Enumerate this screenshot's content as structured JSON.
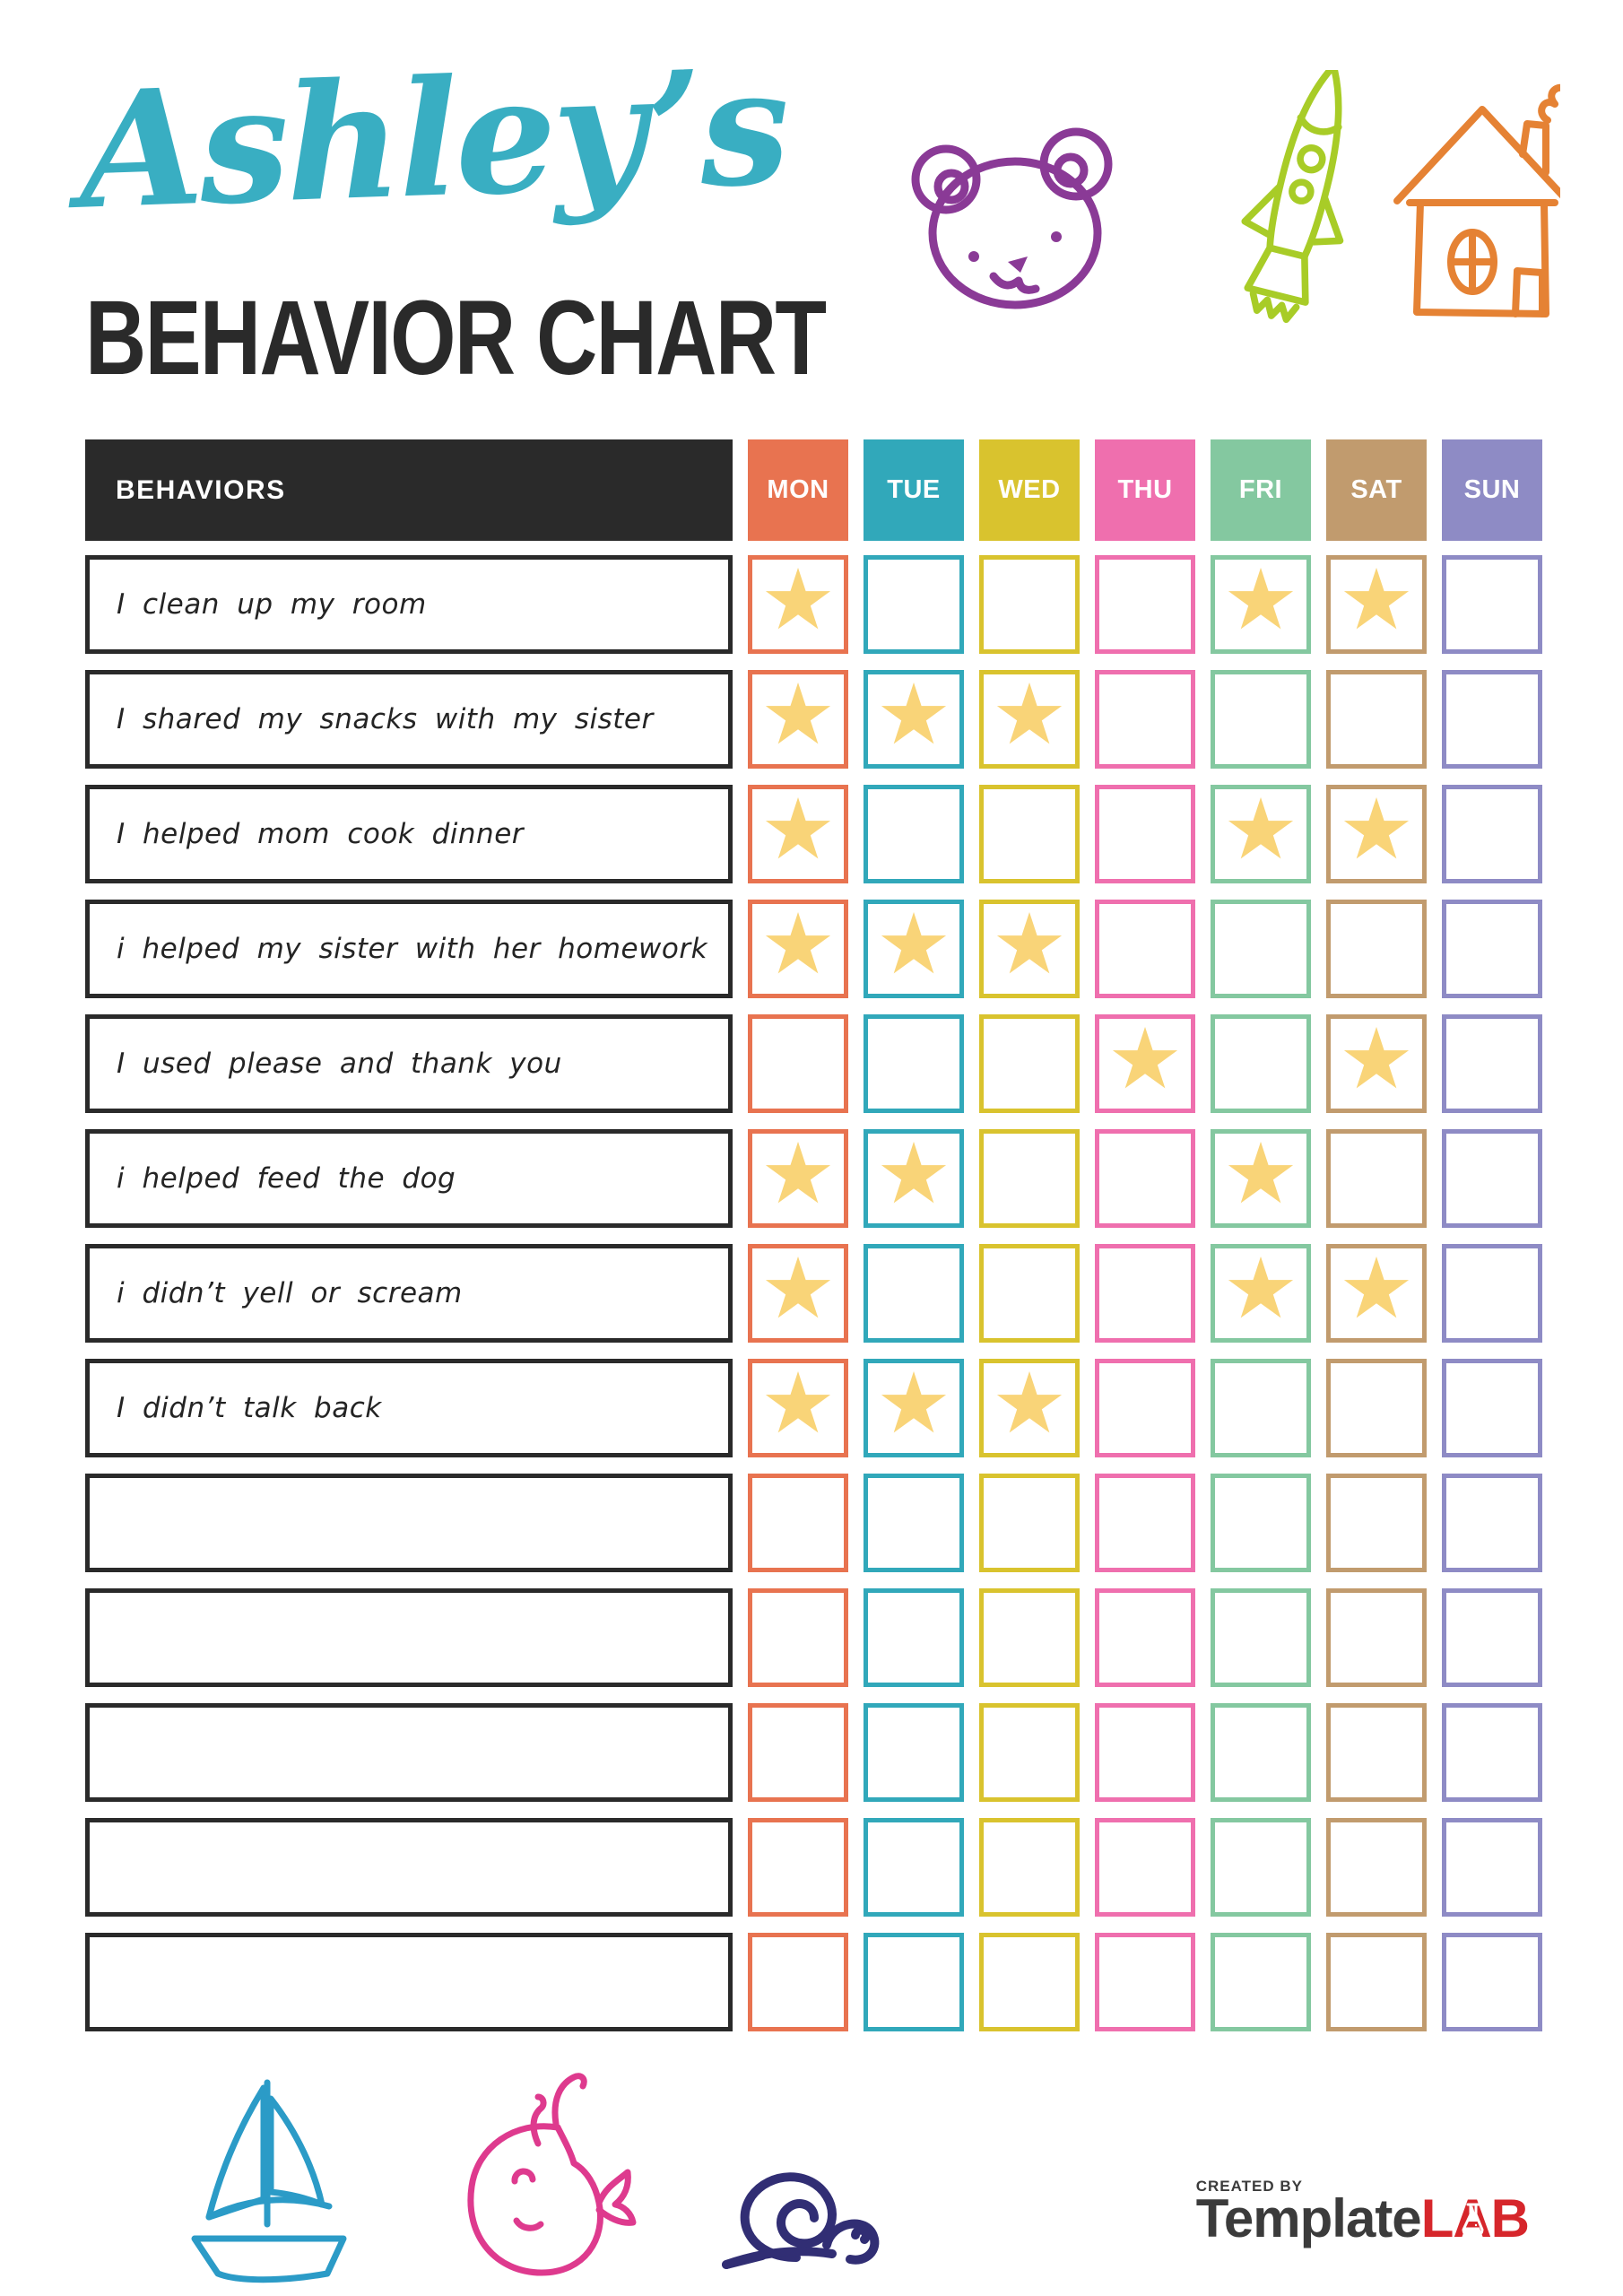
{
  "header": {
    "title_script": "Ashley’s",
    "title_main": "BEHAVIOR CHART",
    "doodles": [
      "bear-icon",
      "rocket-icon",
      "house-icon"
    ]
  },
  "table": {
    "behaviors_header": "BEHAVIORS",
    "star_glyph": "★",
    "days": [
      {
        "label": "MON",
        "color": "#E87350"
      },
      {
        "label": "TUE",
        "color": "#31A8BA"
      },
      {
        "label": "WED",
        "color": "#D9C32E"
      },
      {
        "label": "THU",
        "color": "#EF6FAE"
      },
      {
        "label": "FRI",
        "color": "#84C8A0"
      },
      {
        "label": "SAT",
        "color": "#C19B6E"
      },
      {
        "label": "SUN",
        "color": "#8E8BC5"
      }
    ],
    "rows": [
      {
        "label": "I clean up my room",
        "stars": [
          1,
          0,
          0,
          0,
          1,
          1,
          0
        ]
      },
      {
        "label": "I shared my snacks with my sister",
        "stars": [
          1,
          1,
          1,
          0,
          0,
          0,
          0
        ]
      },
      {
        "label": "I helped mom cook dinner",
        "stars": [
          1,
          0,
          0,
          0,
          1,
          1,
          0
        ]
      },
      {
        "label": "i helped my sister with her homework",
        "stars": [
          1,
          1,
          1,
          0,
          0,
          0,
          0
        ]
      },
      {
        "label": "I used please and thank you",
        "stars": [
          0,
          0,
          0,
          1,
          0,
          1,
          0
        ]
      },
      {
        "label": "i helped feed the dog",
        "stars": [
          1,
          1,
          0,
          0,
          1,
          0,
          0
        ]
      },
      {
        "label": "i didn’t yell or scream",
        "stars": [
          1,
          0,
          0,
          0,
          1,
          1,
          0
        ]
      },
      {
        "label": "I didn’t talk back",
        "stars": [
          1,
          1,
          1,
          0,
          0,
          0,
          0
        ]
      },
      {
        "label": "",
        "stars": [
          0,
          0,
          0,
          0,
          0,
          0,
          0
        ]
      },
      {
        "label": "",
        "stars": [
          0,
          0,
          0,
          0,
          0,
          0,
          0
        ]
      },
      {
        "label": "",
        "stars": [
          0,
          0,
          0,
          0,
          0,
          0,
          0
        ]
      },
      {
        "label": "",
        "stars": [
          0,
          0,
          0,
          0,
          0,
          0,
          0
        ]
      },
      {
        "label": "",
        "stars": [
          0,
          0,
          0,
          0,
          0,
          0,
          0
        ]
      }
    ]
  },
  "footer": {
    "doodles": [
      "sailboat-icon",
      "whale-icon",
      "snail-icon"
    ],
    "created_by": "CREATED BY",
    "logo_part1": "Template",
    "logo_part2": "LAB"
  },
  "colors": {
    "title_teal": "#39AEC2",
    "ink": "#2A2A2A",
    "star": "#F9D478",
    "bear_purple": "#8A3A96",
    "rocket_green": "#A8CC27",
    "house_orange": "#E58234",
    "boat_blue": "#2B9BC7",
    "whale_pink": "#DE3A8E",
    "snail_navy": "#312E74",
    "logo_gray": "#3B3B3B",
    "logo_red": "#D6262B"
  }
}
